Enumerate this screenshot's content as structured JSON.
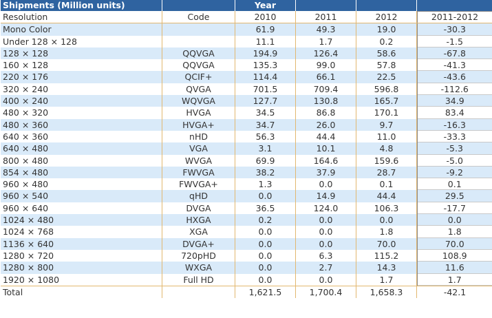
{
  "header": {
    "title": "Shipments (Million units)",
    "year_label": "Year",
    "columns": [
      "Resolution",
      "Code",
      "2010",
      "2011",
      "2012",
      "2011-2012"
    ]
  },
  "rows": [
    {
      "resolution": "Mono Color",
      "code": "",
      "y2010": "61.9",
      "y2011": "49.3",
      "y2012": "19.0",
      "delta": "-30.3"
    },
    {
      "resolution": "Under 128 × 128",
      "code": "",
      "y2010": "11.1",
      "y2011": "1.7",
      "y2012": "0.2",
      "delta": "-1.5"
    },
    {
      "resolution": "128 × 128",
      "code": "QQVGA",
      "y2010": "194.9",
      "y2011": "126.4",
      "y2012": "58.6",
      "delta": "-67.8"
    },
    {
      "resolution": "160 × 128",
      "code": "QQVGA",
      "y2010": "135.3",
      "y2011": "99.0",
      "y2012": "57.8",
      "delta": "-41.3"
    },
    {
      "resolution": "220 × 176",
      "code": "QCIF+",
      "y2010": "114.4",
      "y2011": "66.1",
      "y2012": "22.5",
      "delta": "-43.6"
    },
    {
      "resolution": "320 × 240",
      "code": "QVGA",
      "y2010": "701.5",
      "y2011": "709.4",
      "y2012": "596.8",
      "delta": "-112.6"
    },
    {
      "resolution": "400 × 240",
      "code": "WQVGA",
      "y2010": "127.7",
      "y2011": "130.8",
      "y2012": "165.7",
      "delta": "34.9"
    },
    {
      "resolution": "480 × 320",
      "code": "HVGA",
      "y2010": "34.5",
      "y2011": "86.8",
      "y2012": "170.1",
      "delta": "83.4"
    },
    {
      "resolution": "480 × 360",
      "code": "HVGA+",
      "y2010": "34.7",
      "y2011": "26.0",
      "y2012": "9.7",
      "delta": "-16.3"
    },
    {
      "resolution": "640 × 360",
      "code": "nHD",
      "y2010": "56.3",
      "y2011": "44.4",
      "y2012": "11.0",
      "delta": "-33.3"
    },
    {
      "resolution": "640 × 480",
      "code": "VGA",
      "y2010": "3.1",
      "y2011": "10.1",
      "y2012": "4.8",
      "delta": "-5.3"
    },
    {
      "resolution": "800 × 480",
      "code": "WVGA",
      "y2010": "69.9",
      "y2011": "164.6",
      "y2012": "159.6",
      "delta": "-5.0"
    },
    {
      "resolution": "854 × 480",
      "code": "FWVGA",
      "y2010": "38.2",
      "y2011": "37.9",
      "y2012": "28.7",
      "delta": "-9.2"
    },
    {
      "resolution": "960 × 480",
      "code": "FWVGA+",
      "y2010": "1.3",
      "y2011": "0.0",
      "y2012": "0.1",
      "delta": "0.1"
    },
    {
      "resolution": "960 × 540",
      "code": "qHD",
      "y2010": "0.0",
      "y2011": "14.9",
      "y2012": "44.4",
      "delta": "29.5"
    },
    {
      "resolution": "960 × 640",
      "code": "DVGA",
      "y2010": "36.5",
      "y2011": "124.0",
      "y2012": "106.3",
      "delta": "-17.7"
    },
    {
      "resolution": "1024 × 480",
      "code": "HXGA",
      "y2010": "0.2",
      "y2011": "0.0",
      "y2012": "0.0",
      "delta": "0.0"
    },
    {
      "resolution": "1024 × 768",
      "code": "XGA",
      "y2010": "0.0",
      "y2011": "0.0",
      "y2012": "1.8",
      "delta": "1.8"
    },
    {
      "resolution": "1136 × 640",
      "code": "DVGA+",
      "y2010": "0.0",
      "y2011": "0.0",
      "y2012": "70.0",
      "delta": "70.0"
    },
    {
      "resolution": "1280 × 720",
      "code": "720pHD",
      "y2010": "0.0",
      "y2011": "6.3",
      "y2012": "115.2",
      "delta": "108.9"
    },
    {
      "resolution": "1280 × 800",
      "code": "WXGA",
      "y2010": "0.0",
      "y2011": "2.7",
      "y2012": "14.3",
      "delta": "11.6"
    },
    {
      "resolution": "1920 × 1080",
      "code": "Full HD",
      "y2010": "0.0",
      "y2011": "0.0",
      "y2012": "1.7",
      "delta": "1.7"
    }
  ],
  "total": {
    "label": "Total",
    "y2010": "1,621.5",
    "y2011": "1,700.4",
    "y2012": "1,658.3",
    "delta": "-42.1"
  },
  "colors": {
    "header_bg": "#2f63a0",
    "stripe": "#d9eaf9",
    "divider": "#e2b76f"
  }
}
